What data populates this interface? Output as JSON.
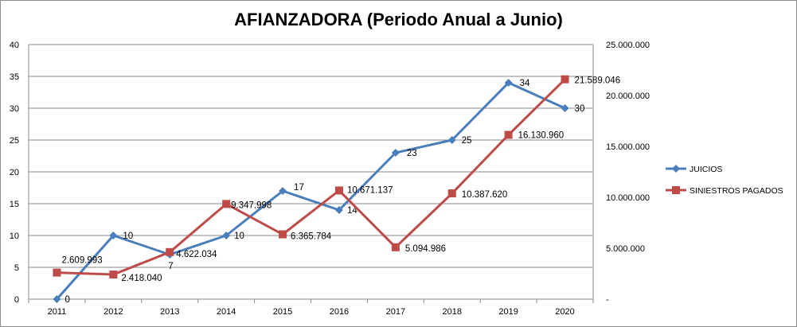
{
  "chart_data": {
    "type": "line",
    "title": "AFIANZADORA (Periodo Anual a Junio)",
    "categories": [
      "2011",
      "2012",
      "2013",
      "2014",
      "2015",
      "2016",
      "2017",
      "2018",
      "2019",
      "2020"
    ],
    "y_left": {
      "min": 0,
      "max": 40,
      "step": 5,
      "ticks": [
        "0",
        "5",
        "10",
        "15",
        "20",
        "25",
        "30",
        "35",
        "40"
      ]
    },
    "y_right": {
      "min": 0,
      "max": 25000000,
      "step": 5000000,
      "ticks": [
        "-",
        "5.000.000",
        "10.000.000",
        "15.000.000",
        "20.000.000",
        "25.000.000"
      ]
    },
    "grid": true,
    "legend_position": "right",
    "series": [
      {
        "name": "JUICIOS",
        "axis": "left",
        "color": "#4a7ebb",
        "marker": "diamond",
        "values": [
          0,
          10,
          7,
          10,
          17,
          14,
          23,
          25,
          34,
          30
        ],
        "labels": [
          "0",
          "10",
          "7",
          "10",
          "17",
          "14",
          "23",
          "25",
          "34",
          "30"
        ]
      },
      {
        "name": "SINIESTROS PAGADOS",
        "axis": "right",
        "color": "#be4b48",
        "marker": "square",
        "values": [
          2609993,
          2418040,
          4622034,
          9347998,
          6365784,
          10671137,
          5094986,
          10387620,
          16130960,
          21589046
        ],
        "labels": [
          "2.609.993",
          "2.418.040",
          "4.622.034",
          "9.347.998",
          "6.365.784",
          "10.671.137",
          "5.094.986",
          "10.387.620",
          "16.130.960",
          "21.589.046"
        ]
      }
    ]
  }
}
